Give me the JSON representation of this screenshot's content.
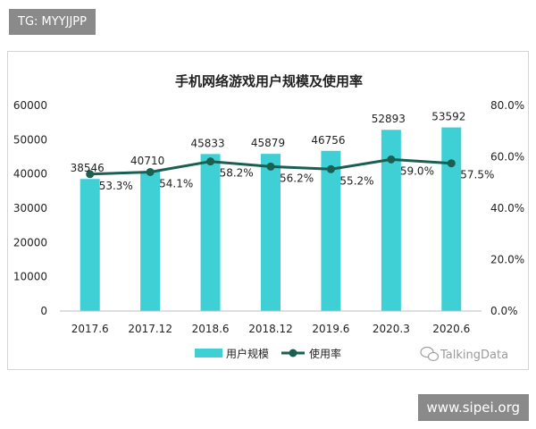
{
  "badges": {
    "top_left": "TG: MYYJJPP",
    "bottom_right": "www.sipei.org"
  },
  "watermark": "TalkingData",
  "colors": {
    "bar": "#3fd0d6",
    "line": "#1b5e52",
    "axis": "#bfbfbf"
  },
  "chart_data": {
    "type": "bar",
    "title": "手机网络游戏用户规模及使用率",
    "categories": [
      "2017.6",
      "2017.12",
      "2018.6",
      "2018.12",
      "2019.6",
      "2020.3",
      "2020.6"
    ],
    "series": [
      {
        "name": "用户规模",
        "type": "bar",
        "axis": "left",
        "values": [
          38546,
          40710,
          45833,
          45879,
          46756,
          52893,
          53592
        ],
        "labels": [
          "38546",
          "40710",
          "45833",
          "45879",
          "46756",
          "52893",
          "53592"
        ]
      },
      {
        "name": "使用率",
        "type": "line",
        "axis": "right",
        "values": [
          53.3,
          54.1,
          58.2,
          56.2,
          55.2,
          59.0,
          57.5
        ],
        "labels": [
          "53.3%",
          "54.1%",
          "58.2%",
          "56.2%",
          "55.2%",
          "59.0%",
          "57.5%"
        ]
      }
    ],
    "y_left": {
      "ylim": [
        0,
        60000
      ],
      "ticks": [
        "0",
        "10000",
        "20000",
        "30000",
        "40000",
        "50000",
        "60000"
      ]
    },
    "y_right": {
      "ylim": [
        0,
        80
      ],
      "ticks": [
        "0.0%",
        "20.0%",
        "40.0%",
        "60.0%",
        "80.0%"
      ]
    },
    "legend": {
      "position": "bottom-center",
      "entries": [
        "用户规模",
        "使用率"
      ]
    },
    "grid": false
  }
}
